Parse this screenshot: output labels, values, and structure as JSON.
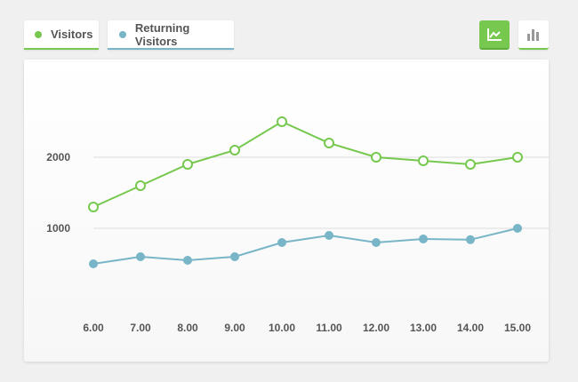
{
  "legend": {
    "visitors": {
      "label": "Visitors",
      "color": "#76c84f"
    },
    "returning": {
      "label": "Returning Visitors",
      "color": "#78b5c7"
    }
  },
  "view_toggle": {
    "line_icon": "line-chart-icon",
    "bar_icon": "bar-chart-icon",
    "active": "line"
  },
  "chart_data": {
    "type": "line",
    "x": [
      "6.00",
      "7.00",
      "8.00",
      "9.00",
      "10.00",
      "11.00",
      "12.00",
      "13.00",
      "14.00",
      "15.00"
    ],
    "series": [
      {
        "name": "Visitors",
        "color": "#76c84f",
        "marker": "hollow-circle",
        "values": [
          1300,
          1600,
          1900,
          2100,
          2500,
          2200,
          2000,
          1950,
          1900,
          2000
        ]
      },
      {
        "name": "Returning Visitors",
        "color": "#78b5c7",
        "marker": "filled-circle",
        "values": [
          500,
          600,
          550,
          600,
          800,
          900,
          800,
          850,
          840,
          1000
        ]
      }
    ],
    "y_ticks": [
      "1000",
      "2000"
    ],
    "ylim": [
      0,
      3000
    ],
    "grid": "horizontal",
    "title": "",
    "xlabel": "",
    "ylabel": ""
  }
}
